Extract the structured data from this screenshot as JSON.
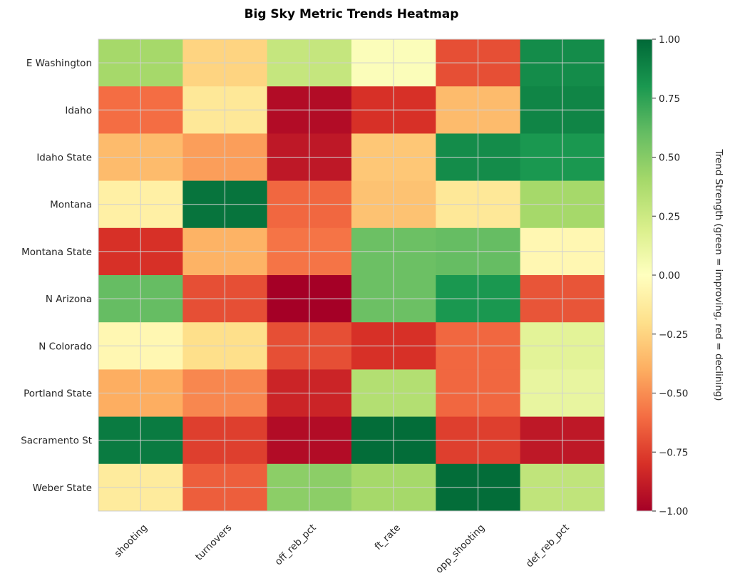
{
  "chart_data": {
    "type": "heatmap",
    "title": "Big Sky Metric Trends Heatmap",
    "xlabel": "",
    "ylabel": "",
    "x_categories": [
      "shooting",
      "turnovers",
      "off_reb_pct",
      "ft_rate",
      "opp_shooting",
      "def_reb_pct"
    ],
    "y_categories": [
      "E Washington",
      "Idaho",
      "Idaho State",
      "Montana",
      "Montana State",
      "N Arizona",
      "N Colorado",
      "Portland State",
      "Sacramento St",
      "Weber State"
    ],
    "values": [
      [
        0.4,
        -0.25,
        0.28,
        0.02,
        -0.7,
        0.85
      ],
      [
        -0.6,
        -0.15,
        -0.95,
        -0.8,
        -0.35,
        0.88
      ],
      [
        -0.35,
        -0.45,
        -0.9,
        -0.3,
        0.85,
        0.8
      ],
      [
        -0.1,
        0.95,
        -0.62,
        -0.32,
        -0.15,
        0.4
      ],
      [
        -0.8,
        -0.38,
        -0.58,
        0.58,
        0.6,
        -0.05
      ],
      [
        0.6,
        -0.7,
        -1.0,
        0.58,
        0.8,
        -0.68
      ],
      [
        -0.05,
        -0.2,
        -0.7,
        -0.8,
        -0.62,
        0.15
      ],
      [
        -0.4,
        -0.52,
        -0.85,
        0.35,
        -0.62,
        0.12
      ],
      [
        0.92,
        -0.75,
        -0.95,
        0.98,
        -0.75,
        -0.9
      ],
      [
        -0.13,
        -0.65,
        0.48,
        0.4,
        0.98,
        0.3
      ]
    ],
    "colormap": "RdYlGn",
    "vmin": -1.0,
    "vmax": 1.0,
    "colorbar_label": "Trend Strength (green = improving, red = declining)",
    "colorbar_ticks": [
      "1.00",
      "0.75",
      "0.50",
      "0.25",
      "0.00",
      "−0.25",
      "−0.50",
      "−0.75",
      "−1.00"
    ],
    "colorbar_tick_values": [
      1.0,
      0.75,
      0.5,
      0.25,
      0.0,
      -0.25,
      -0.5,
      -0.75,
      -1.0
    ],
    "grid": true
  }
}
